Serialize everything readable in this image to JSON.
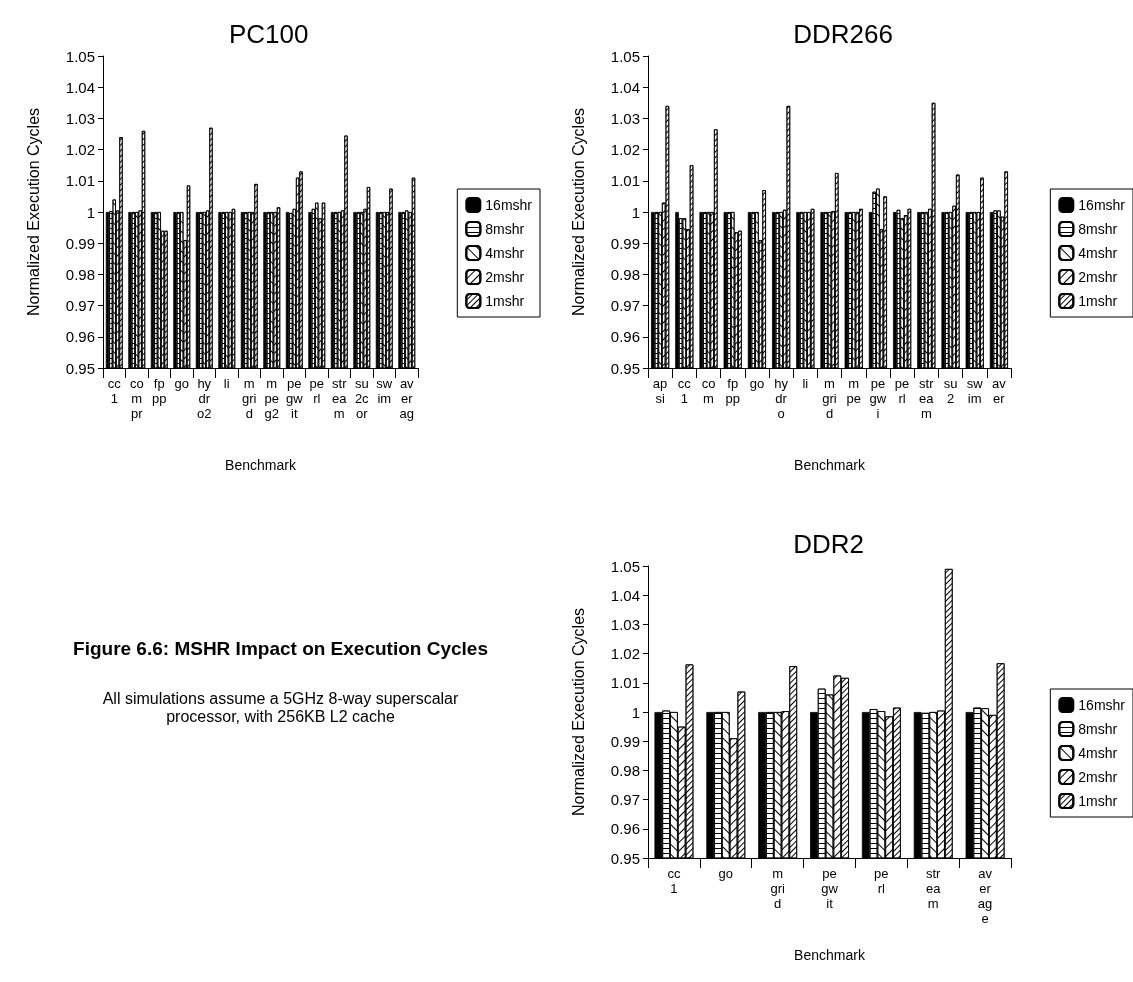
{
  "chart_data": [
    {
      "type": "bar",
      "title": "PC100",
      "xlabel": "Benchmark",
      "ylabel": "Normalized Execution Cycles",
      "categories": [
        "cc1",
        "compr",
        "fppp",
        "go",
        "hydro2",
        "li",
        "mgrid",
        "mpeg2",
        "pegwit",
        "perl",
        "stream",
        "su2cor",
        "swim",
        "averag"
      ],
      "ylim": [
        0.95,
        1.05
      ],
      "yticks": [
        0.95,
        0.96,
        0.97,
        0.98,
        0.99,
        1,
        1.01,
        1.02,
        1.03,
        1.04,
        1.05
      ],
      "grid": false,
      "legend": "right",
      "series": [
        {
          "name": "16mshr",
          "color": "#000000",
          "values": [
            1,
            1,
            1,
            1,
            1,
            1,
            1,
            1,
            1,
            1,
            1,
            1,
            1,
            1
          ]
        },
        {
          "name": "8mshr",
          "color": "#ffffff",
          "values": [
            1.0003,
            1,
            1,
            1,
            1,
            1,
            1,
            1,
            0.9997,
            1.001,
            1,
            1,
            1,
            1
          ]
        },
        {
          "name": "4mshr",
          "color": "#ffffff",
          "values": [
            1.004,
            1,
            1,
            1,
            1,
            1,
            1,
            1,
            1.001,
            1.003,
            1,
            1,
            1,
            1.0005
          ]
        },
        {
          "name": "2mshr",
          "color": "#ffffff",
          "values": [
            1.0005,
            1.0005,
            0.994,
            0.991,
            1.0005,
            1,
            1,
            1,
            1.011,
            0.998,
            1.0005,
            1.001,
            1,
            1
          ]
        },
        {
          "name": "1mshr",
          "color": "#ffffff",
          "values": [
            1.024,
            1.026,
            0.994,
            1.0085,
            1.027,
            1.001,
            1.009,
            1.0015,
            1.013,
            1.003,
            1.0245,
            1.008,
            1.0075,
            1.011
          ]
        }
      ]
    },
    {
      "type": "bar",
      "title": "DDR266",
      "xlabel": "Benchmark",
      "ylabel": "Normalized Execution Cycles",
      "categories": [
        "apsi",
        "cc1",
        "com",
        "fppp",
        "go",
        "hydro",
        "li",
        "mgrid",
        "mpe",
        "pegwi",
        "perl",
        "stream",
        "su2",
        "swim",
        "aver"
      ],
      "ylim": [
        0.95,
        1.05
      ],
      "yticks": [
        0.95,
        0.96,
        0.97,
        0.98,
        0.99,
        1,
        1.01,
        1.02,
        1.03,
        1.04,
        1.05
      ],
      "grid": false,
      "legend": "right",
      "series": [
        {
          "name": "16mshr",
          "color": "#000000",
          "values": [
            1,
            1,
            1,
            1,
            1,
            1,
            1,
            1,
            1,
            1,
            1,
            1,
            1,
            1,
            1
          ]
        },
        {
          "name": "8mshr",
          "color": "#ffffff",
          "values": [
            1,
            0.998,
            1,
            1,
            1,
            1,
            1,
            1,
            1,
            1.0065,
            1.0007,
            1,
            1,
            1,
            1.0005
          ]
        },
        {
          "name": "4mshr",
          "color": "#ffffff",
          "values": [
            1,
            0.998,
            1,
            1,
            1,
            1,
            1,
            1,
            1,
            1.0075,
            0.998,
            1,
            1,
            1,
            1.0005
          ]
        },
        {
          "name": "2mshr",
          "color": "#ffffff",
          "values": [
            1.003,
            0.9945,
            1,
            0.9935,
            0.991,
            1.0007,
            1,
            1.0003,
            1,
            0.9945,
            0.999,
            1.001,
            1.002,
            1,
            0.9985
          ]
        },
        {
          "name": "1mshr",
          "color": "#ffffff",
          "values": [
            1.034,
            1.015,
            1.0265,
            0.994,
            1.007,
            1.034,
            1.001,
            1.0125,
            1.001,
            1.005,
            1.001,
            1.035,
            1.012,
            1.011,
            1.013
          ]
        }
      ]
    },
    {
      "type": "other",
      "title": "Figure 6.6: MSHR Impact on Execution Cycles",
      "annotations": [
        "All simulations assume a 5GHz 8-way superscalar processor, with 256KB L2 cache"
      ]
    },
    {
      "type": "bar",
      "title": "DDR2",
      "xlabel": "Benchmark",
      "ylabel": "Normalized Execution Cycles",
      "categories": [
        "cc1",
        "go",
        "mgrid",
        "pegwit",
        "perl",
        "stream",
        "average"
      ],
      "ylim": [
        0.95,
        1.05
      ],
      "yticks": [
        0.95,
        0.96,
        0.97,
        0.98,
        0.99,
        1,
        1.01,
        1.02,
        1.03,
        1.04,
        1.05
      ],
      "grid": false,
      "legend": "right",
      "series": [
        {
          "name": "16mshr",
          "color": "#000000",
          "values": [
            1,
            1,
            1,
            1,
            1,
            1,
            1
          ]
        },
        {
          "name": "8mshr",
          "color": "#ffffff",
          "values": [
            1.0005,
            1,
            1,
            1.008,
            1.001,
            0.9997,
            1.0015
          ]
        },
        {
          "name": "4mshr",
          "color": "#ffffff",
          "values": [
            1,
            1,
            1,
            1.006,
            1.0003,
            1,
            1.0013
          ]
        },
        {
          "name": "2mshr",
          "color": "#ffffff",
          "values": [
            0.995,
            0.991,
            1.0003,
            1.0125,
            0.9985,
            1.0005,
            0.999
          ]
        },
        {
          "name": "1mshr",
          "color": "#ffffff",
          "values": [
            1.0163,
            1.007,
            1.0157,
            1.0117,
            1.0015,
            1.049,
            1.0167
          ]
        }
      ]
    }
  ]
}
